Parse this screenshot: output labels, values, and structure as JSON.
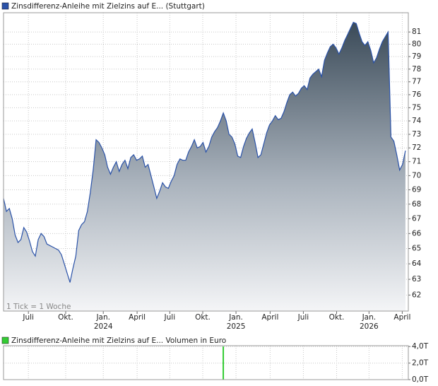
{
  "chart_data": [
    {
      "type": "area",
      "log_scale": true,
      "grid": true,
      "note": "1 Tick = 1 Woche",
      "series": [
        {
          "name": "Zinsdifferenz-Anleihe mit Zielzins auf E... (Stuttgart)",
          "color": "#2a52a8",
          "values": [
            68.4,
            67.5,
            67.7,
            67.0,
            65.9,
            65.4,
            65.6,
            66.4,
            66.1,
            65.5,
            64.8,
            64.5,
            65.6,
            66.0,
            65.8,
            65.3,
            65.2,
            65.1,
            65.0,
            64.9,
            64.6,
            64.0,
            63.4,
            62.8,
            63.7,
            64.5,
            66.2,
            66.6,
            66.8,
            67.5,
            68.8,
            70.4,
            72.6,
            72.4,
            72.0,
            71.5,
            70.6,
            70.1,
            70.6,
            71.0,
            70.3,
            70.8,
            71.1,
            70.5,
            71.3,
            71.5,
            71.1,
            71.2,
            71.4,
            70.6,
            70.8,
            70.0,
            69.2,
            68.4,
            68.9,
            69.5,
            69.2,
            69.1,
            69.6,
            70.0,
            70.8,
            71.2,
            71.1,
            71.1,
            71.7,
            72.1,
            72.6,
            72.0,
            72.1,
            72.4,
            71.7,
            72.1,
            72.8,
            73.2,
            73.5,
            74.0,
            74.6,
            74.0,
            73.0,
            72.8,
            72.3,
            71.4,
            71.3,
            72.1,
            72.7,
            73.1,
            73.4,
            72.4,
            71.3,
            71.5,
            72.3,
            73.1,
            73.7,
            74.0,
            74.4,
            74.1,
            74.2,
            74.7,
            75.4,
            76.0,
            76.2,
            75.9,
            76.1,
            76.5,
            76.7,
            76.4,
            77.3,
            77.6,
            77.8,
            78.0,
            77.4,
            78.7,
            79.3,
            79.8,
            80.0,
            79.7,
            79.2,
            79.7,
            80.3,
            80.8,
            81.3,
            81.8,
            81.7,
            80.9,
            80.2,
            79.9,
            80.2,
            79.5,
            78.5,
            78.9,
            79.6,
            80.2,
            80.6,
            81.0,
            72.8,
            72.5,
            71.5,
            70.4,
            70.8,
            71.8
          ]
        }
      ],
      "xlim": [
        0,
        140
      ],
      "xticks": [
        {
          "value": 8.6,
          "label": "Juli"
        },
        {
          "value": 21.5,
          "label": "Okt."
        },
        {
          "value": 34.5,
          "label": "Jan."
        },
        {
          "value": 46.2,
          "label": "April"
        },
        {
          "value": 57.5,
          "label": "Juli"
        },
        {
          "value": 68.9,
          "label": "Okt."
        },
        {
          "value": 80.4,
          "label": "Jan."
        },
        {
          "value": 92.2,
          "label": "April"
        },
        {
          "value": 103.7,
          "label": "Juli"
        },
        {
          "value": 115.2,
          "label": "Okt."
        },
        {
          "value": 126.4,
          "label": "Jan."
        },
        {
          "value": 137.9,
          "label": "April"
        }
      ],
      "year_labels": [
        {
          "value": 34.5,
          "label": "2024"
        },
        {
          "value": 80.4,
          "label": "2025"
        },
        {
          "value": 126.4,
          "label": "2026"
        }
      ],
      "ylim": [
        61,
        82.6
      ],
      "yticks": [
        62,
        63,
        64,
        65,
        66,
        67,
        68,
        69,
        70,
        71,
        72,
        73,
        74,
        75,
        76,
        77,
        78,
        79,
        80,
        81
      ]
    },
    {
      "type": "bar",
      "grid": true,
      "series": [
        {
          "name": "Zinsdifferenz-Anleihe mit Zielzins auf E...",
          "color": "#33cc33",
          "x": [
            76
          ],
          "values": [
            4.0
          ]
        }
      ],
      "unit": "Volumen in Euro",
      "xlim": [
        0,
        140
      ],
      "ylim": [
        0,
        4.1
      ],
      "yticks": [
        {
          "value": 4,
          "label": "4,0T"
        },
        {
          "value": 2,
          "label": "2,0T"
        },
        {
          "value": 0,
          "label": "0,0T"
        }
      ]
    }
  ]
}
